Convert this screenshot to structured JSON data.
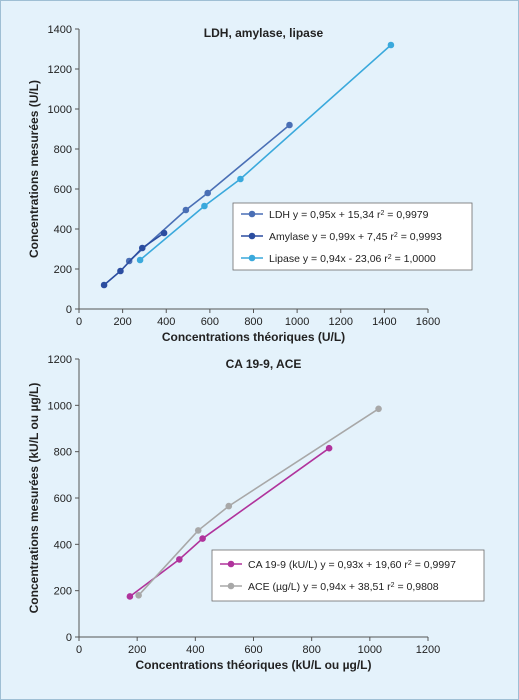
{
  "chart_data": [
    {
      "type": "line",
      "title": "LDH, amylase, lipase",
      "xlabel": "Concentrations théoriques (U/L)",
      "ylabel": "Concentrations mesurées (U/L)",
      "xlim": [
        0,
        1600
      ],
      "ylim": [
        0,
        1400
      ],
      "xticks": [
        0,
        200,
        400,
        600,
        800,
        1000,
        1200,
        1400,
        1600
      ],
      "yticks": [
        0,
        200,
        400,
        600,
        800,
        1000,
        1200,
        1400
      ],
      "grid": false,
      "legend_position": "right",
      "series": [
        {
          "name": "LDH",
          "legend": "LDH  y = 0,95x + 15,34 r² = 0,9979",
          "color": "#4a6fb5",
          "x": [
            230,
            490,
            590,
            965
          ],
          "y": [
            240,
            495,
            580,
            920
          ]
        },
        {
          "name": "Amylase",
          "legend": "Amylase  y = 0,99x + 7,45 r² = 0,9993",
          "color": "#2b4da0",
          "x": [
            115,
            190,
            290,
            390
          ],
          "y": [
            120,
            190,
            305,
            380
          ]
        },
        {
          "name": "Lipase",
          "legend": "Lipase  y = 0,94x - 23,06 r² = 1,0000",
          "color": "#3aa9dc",
          "x": [
            280,
            575,
            740,
            1430
          ],
          "y": [
            245,
            515,
            650,
            1320
          ]
        }
      ]
    },
    {
      "type": "line",
      "title": "CA 19-9, ACE",
      "xlabel": "Concentrations théoriques (kU/L ou µg/L)",
      "ylabel": "Concentrations mesurées (kU/L ou µg/L)",
      "xlim": [
        0,
        1200
      ],
      "ylim": [
        0,
        1200
      ],
      "xticks": [
        0,
        200,
        400,
        600,
        800,
        1000,
        1200
      ],
      "yticks": [
        0,
        200,
        400,
        600,
        800,
        1000,
        1200
      ],
      "grid": false,
      "legend_position": "bottom-right",
      "series": [
        {
          "name": "CA 19-9 (kU/L)",
          "legend": "CA 19-9 (kU/L)  y = 0,93x + 19,60 r² = 0,9997",
          "color": "#b0339c",
          "x": [
            175,
            345,
            425,
            860
          ],
          "y": [
            175,
            335,
            425,
            815
          ]
        },
        {
          "name": "ACE (µg/L)",
          "legend": "ACE (µg/L)  y = 0,94x + 38,51 r² = 0,9808",
          "color": "#a8a8a8",
          "x": [
            205,
            410,
            515,
            1030
          ],
          "y": [
            180,
            460,
            565,
            985
          ]
        }
      ]
    }
  ]
}
